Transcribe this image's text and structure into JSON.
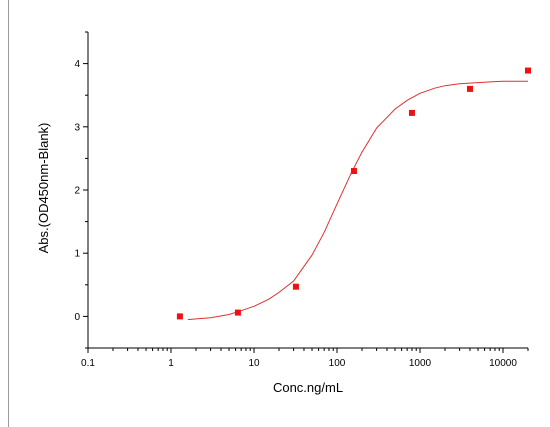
{
  "chart_data": {
    "type": "scatter",
    "title": "",
    "xlabel": "Conc.ng/mL",
    "ylabel": "Abs.(OD450nm-Blank)",
    "x_scale": "log",
    "xlim": [
      0.1,
      20000
    ],
    "ylim": [
      -0.5,
      4.5
    ],
    "x_ticks": [
      0.1,
      1,
      10,
      100,
      1000,
      10000
    ],
    "x_tick_labels": [
      "0.1",
      "1",
      "10",
      "100",
      "1000",
      "10000"
    ],
    "y_ticks": [
      0,
      1,
      2,
      3,
      4
    ],
    "y_tick_labels": [
      "0",
      "1",
      "2",
      "3",
      "4"
    ],
    "grid": false,
    "colors": {
      "points": "#ee1111",
      "fit": "#e03030",
      "axis": "#000000"
    },
    "series": [
      {
        "x": [
          1.28,
          6.4,
          32,
          160,
          800,
          4000,
          20000
        ],
        "y": [
          0.0,
          0.06,
          0.47,
          2.3,
          3.22,
          3.6,
          3.89
        ]
      }
    ],
    "fit_curve": {
      "x": [
        1.6,
        2,
        3,
        5,
        7,
        10,
        15,
        20,
        30,
        50,
        70,
        100,
        150,
        200,
        300,
        500,
        700,
        1000,
        1500,
        2000,
        3000,
        5000,
        7000,
        10000,
        20000
      ],
      "y": [
        -0.05,
        -0.04,
        -0.02,
        0.03,
        0.09,
        0.16,
        0.27,
        0.38,
        0.56,
        0.97,
        1.33,
        1.78,
        2.28,
        2.6,
        2.98,
        3.28,
        3.42,
        3.53,
        3.61,
        3.65,
        3.68,
        3.7,
        3.71,
        3.72,
        3.72
      ]
    }
  }
}
